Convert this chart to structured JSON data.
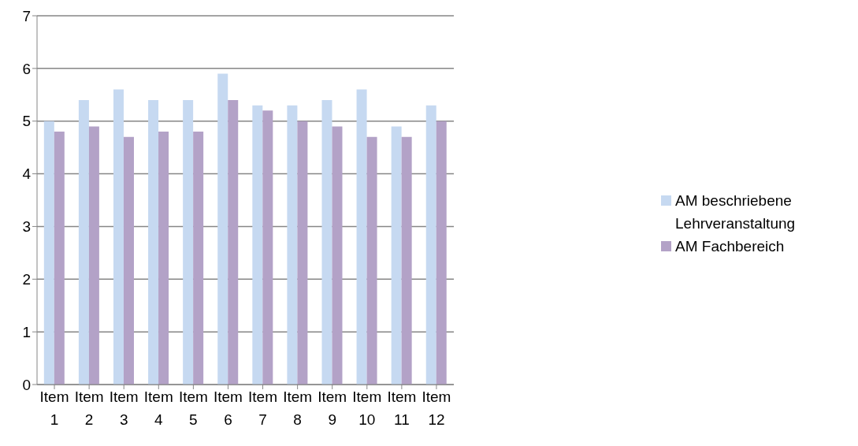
{
  "chart_data": {
    "type": "bar",
    "categories": [
      "Item 1",
      "Item 2",
      "Item 3",
      "Item 4",
      "Item 5",
      "Item 6",
      "Item 7",
      "Item 8",
      "Item 9",
      "Item 10",
      "Item 11",
      "Item 12"
    ],
    "series": [
      {
        "name": "AM beschriebene Lehrveranstaltung",
        "color": "#c6d9f1",
        "values": [
          5.0,
          5.4,
          5.6,
          5.4,
          5.4,
          5.9,
          5.3,
          5.3,
          5.4,
          5.6,
          4.9,
          5.3
        ]
      },
      {
        "name": "AM Fachbereich",
        "color": "#b3a2c7",
        "values": [
          4.8,
          4.9,
          4.7,
          4.8,
          4.8,
          5.4,
          5.2,
          5.0,
          4.9,
          4.7,
          4.7,
          5.0
        ]
      }
    ],
    "ylim": [
      0,
      7
    ],
    "yticks": [
      0,
      1,
      2,
      3,
      4,
      5,
      6,
      7
    ],
    "grid": "y",
    "legend": "right"
  }
}
